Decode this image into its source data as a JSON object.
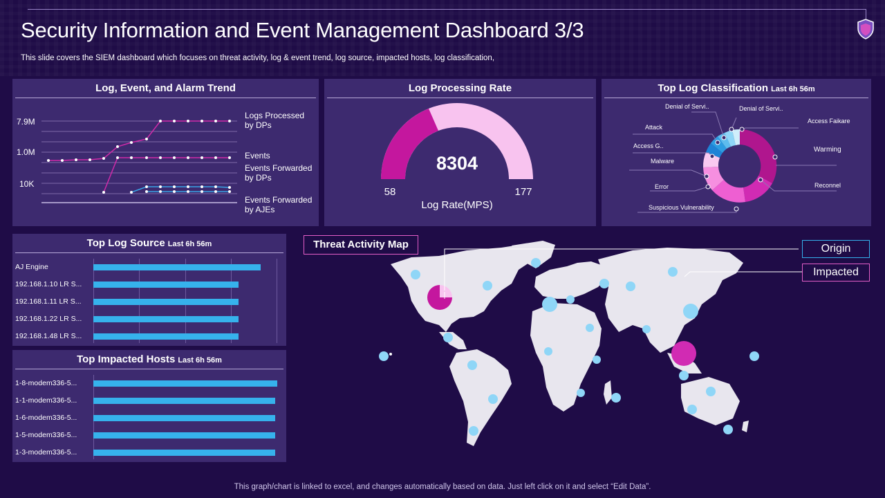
{
  "header": {
    "title": "Security Information and Event Management Dashboard 3/3",
    "subtitle": "This slide covers the SIEM dashboard which focuses on threat activity,  log & event trend, log source, impacted hosts, log classification,",
    "footer": "This graph/chart is linked to excel,  and changes automatically based on data. Just left click on it and select “Edit Data”."
  },
  "colors": {
    "background": "#1f0c47",
    "panel": "#3d2a6f",
    "magenta": "#c4179e",
    "pink_light": "#f8c3ef",
    "cyan": "#36b2ec",
    "light_blue": "#8fd6f7"
  },
  "trend_panel": {
    "title": "Log, Event, and Alarm Trend",
    "y_ticks": [
      "7.9M",
      "1.0M",
      "10K"
    ],
    "legend": {
      "logs": "Logs Processed\nby DPs",
      "events": "Events",
      "events_dps": "Events Forwarded\nby DPs",
      "events_ajes": "Events Forwarded\nby AJEs"
    }
  },
  "gauge_panel": {
    "title": "Log Processing Rate",
    "value": "8304",
    "min": "58",
    "max": "177",
    "label": "Log Rate(MPS)"
  },
  "classification_panel": {
    "title": "Top Log Classification",
    "subtitle": "Last 6h 56m",
    "labels": [
      "Denial of Servi..",
      "Denial of Servi..",
      "Access Faikare",
      "Attack",
      "Access G..",
      "Warming",
      "Malware",
      "Error",
      "Reconnel",
      "Suspicious Vulnerability"
    ]
  },
  "log_source_panel": {
    "title": "Top Log Source",
    "subtitle": "Last 6h 56m",
    "rows": [
      {
        "label": "AJ Engine",
        "value": 91
      },
      {
        "label": "192.168.1.10 LR S...",
        "value": 79
      },
      {
        "label": "192.168.1.11 LR S...",
        "value": 79
      },
      {
        "label": "192.168.1.22 LR S...",
        "value": 79
      },
      {
        "label": "192.168.1.48 LR S...",
        "value": 79
      }
    ]
  },
  "impacted_panel": {
    "title": "Top Impacted Hosts",
    "subtitle": "Last 6h 56m",
    "rows": [
      {
        "label": "1-8-modem336-5...",
        "value": 100
      },
      {
        "label": "1-1-modem336-5...",
        "value": 99
      },
      {
        "label": "1-6-modem336-5...",
        "value": 99
      },
      {
        "label": "1-5-modem336-5...",
        "value": 99
      },
      {
        "label": "1-3-modem336-5...",
        "value": 99
      }
    ]
  },
  "map": {
    "title": "Threat Activity  Map",
    "legend_origin": "Origin",
    "legend_impacted": "Impacted"
  }
}
